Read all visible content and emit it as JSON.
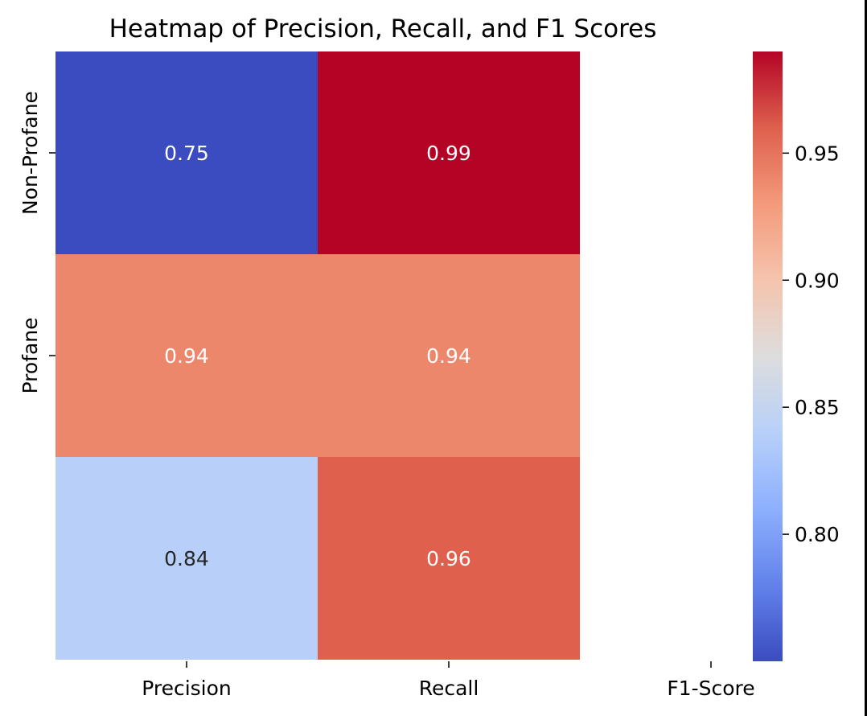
{
  "chart_data": {
    "type": "heatmap",
    "title": "Heatmap of Precision, Recall, and F1 Scores",
    "x_tick_labels": [
      "Precision",
      "Recall",
      "F1-Score"
    ],
    "y_tick_labels": [
      "Non-Profane",
      "Profane"
    ],
    "cells": [
      {
        "row": 0,
        "col": 0,
        "value": 0.75,
        "label": "0.75",
        "label_color": "#ffffff"
      },
      {
        "row": 0,
        "col": 1,
        "value": 0.99,
        "label": "0.99",
        "label_color": "#ffffff"
      },
      {
        "row": 1,
        "col": 0,
        "value": 0.94,
        "label": "0.94",
        "label_color": "#ffffff"
      },
      {
        "row": 1,
        "col": 1,
        "value": 0.94,
        "label": "0.94",
        "label_color": "#ffffff"
      },
      {
        "row": 2,
        "col": 0,
        "value": 0.84,
        "label": "0.84",
        "label_color": "#262626"
      },
      {
        "row": 2,
        "col": 1,
        "value": 0.96,
        "label": "0.96",
        "label_color": "#ffffff"
      }
    ],
    "colormap": "coolwarm",
    "colorbar": {
      "range": [
        0.75,
        0.99
      ],
      "ticks": [
        0.8,
        0.85,
        0.9,
        0.95
      ],
      "tick_labels": [
        "0.80",
        "0.85",
        "0.90",
        "0.95"
      ]
    },
    "grid": false
  }
}
